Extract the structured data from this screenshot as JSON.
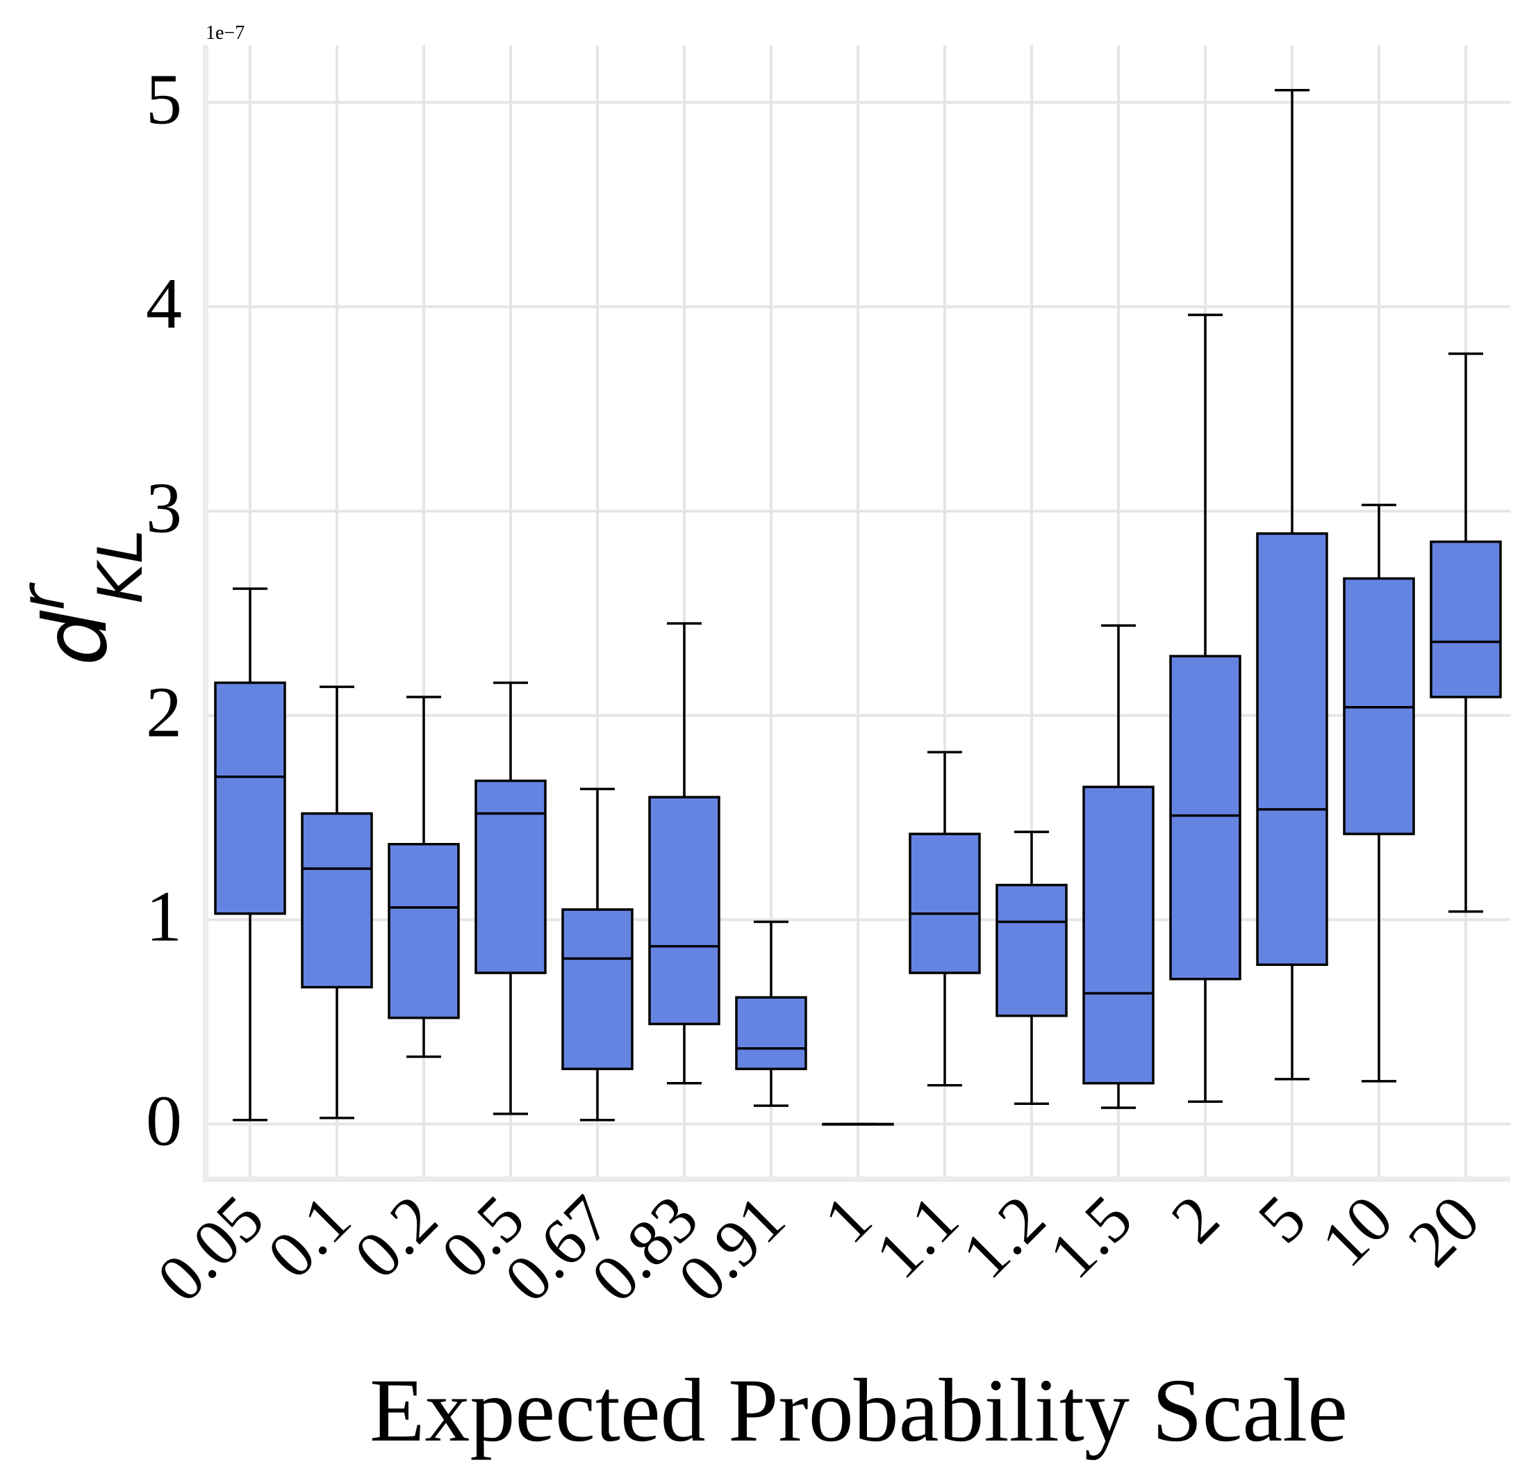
{
  "chart_data": {
    "type": "boxplot",
    "title": "",
    "xlabel": "Expected Probability Scale",
    "ylabel": {
      "base": "d",
      "superscript": "r",
      "subscript": "KL"
    },
    "y_offset_label": "1e−7",
    "ylim": [
      -0.27,
      5.28
    ],
    "yticks": [
      0,
      1,
      2,
      3,
      4,
      5
    ],
    "ytick_labels": [
      "0",
      "1",
      "2",
      "3",
      "4",
      "5"
    ],
    "grid": true,
    "box_color": "#6584e2",
    "grid_color": "#e5e5e5",
    "categories": [
      "0.05",
      "0.1",
      "0.2",
      "0.5",
      "0.67",
      "0.83",
      "0.91",
      "1",
      "1.1",
      "1.2",
      "1.5",
      "2",
      "5",
      "10",
      "20"
    ],
    "boxes": [
      {
        "whislo": 0.02,
        "q1": 1.03,
        "median": 1.7,
        "q3": 2.16,
        "whishi": 2.62
      },
      {
        "whislo": 0.03,
        "q1": 0.67,
        "median": 1.25,
        "q3": 1.52,
        "whishi": 2.14
      },
      {
        "whislo": 0.33,
        "q1": 0.52,
        "median": 1.06,
        "q3": 1.37,
        "whishi": 2.09
      },
      {
        "whislo": 0.05,
        "q1": 0.74,
        "median": 1.52,
        "q3": 1.68,
        "whishi": 2.16
      },
      {
        "whislo": 0.02,
        "q1": 0.27,
        "median": 0.81,
        "q3": 1.05,
        "whishi": 1.64
      },
      {
        "whislo": 0.2,
        "q1": 0.49,
        "median": 0.87,
        "q3": 1.6,
        "whishi": 2.45
      },
      {
        "whislo": 0.09,
        "q1": 0.27,
        "median": 0.37,
        "q3": 0.62,
        "whishi": 0.99
      },
      {
        "whislo": 0.0,
        "q1": 0.0,
        "median": 0.0,
        "q3": 0.0,
        "whishi": 0.0
      },
      {
        "whislo": 0.19,
        "q1": 0.74,
        "median": 1.03,
        "q3": 1.42,
        "whishi": 1.82
      },
      {
        "whislo": 0.1,
        "q1": 0.53,
        "median": 0.99,
        "q3": 1.17,
        "whishi": 1.43
      },
      {
        "whislo": 0.08,
        "q1": 0.2,
        "median": 0.64,
        "q3": 1.65,
        "whishi": 2.44
      },
      {
        "whislo": 0.11,
        "q1": 0.71,
        "median": 1.51,
        "q3": 2.29,
        "whishi": 3.96
      },
      {
        "whislo": 0.22,
        "q1": 0.78,
        "median": 1.54,
        "q3": 2.89,
        "whishi": 5.06
      },
      {
        "whislo": 0.21,
        "q1": 1.42,
        "median": 2.04,
        "q3": 2.67,
        "whishi": 3.03
      },
      {
        "whislo": 1.04,
        "q1": 2.09,
        "median": 2.36,
        "q3": 2.85,
        "whishi": 3.77
      }
    ]
  }
}
